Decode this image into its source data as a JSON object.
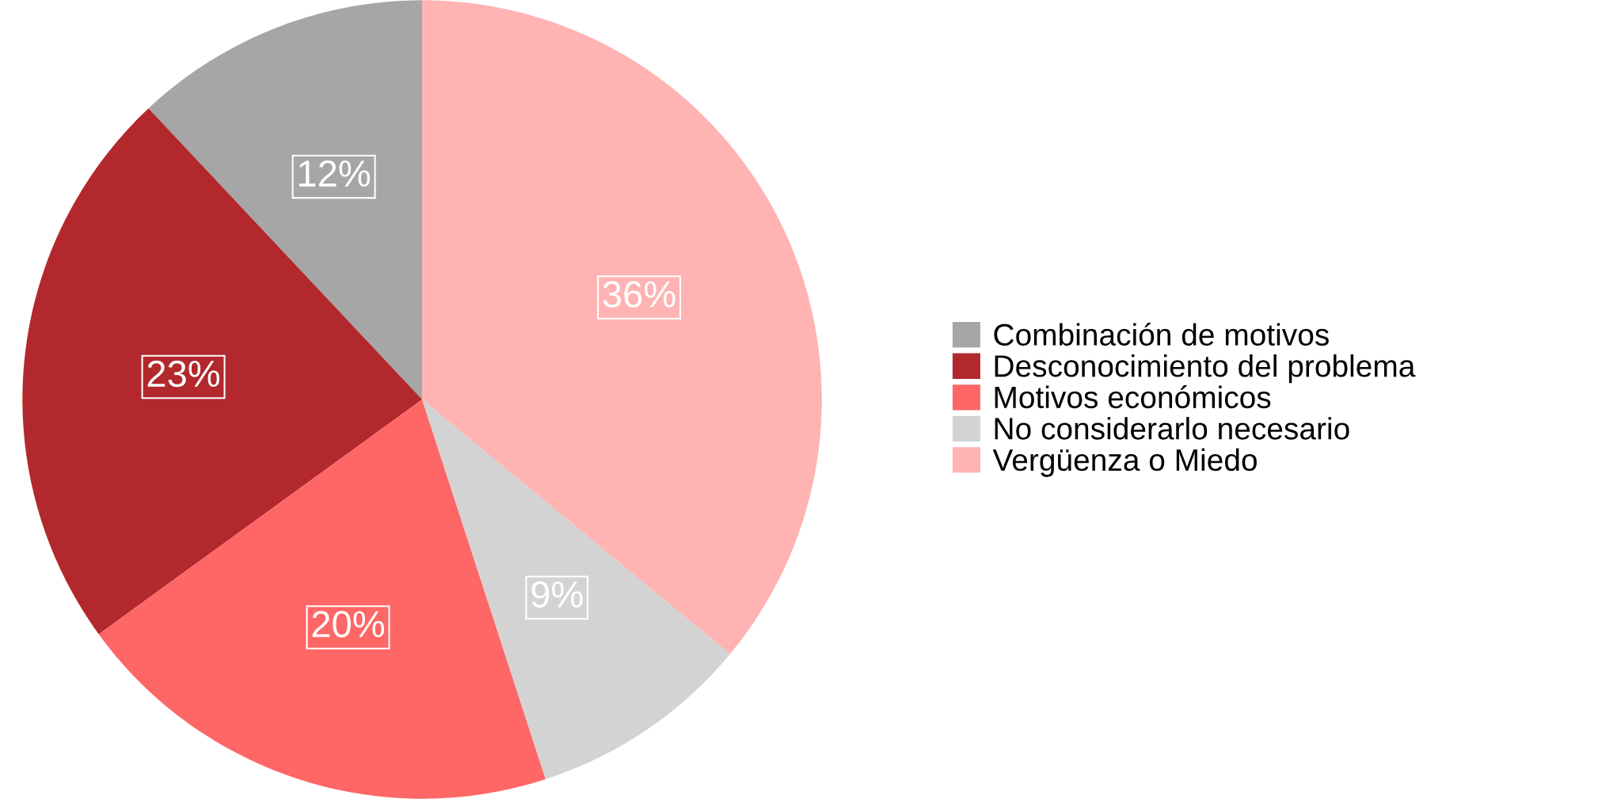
{
  "chart_data": {
    "type": "pie",
    "categories": [
      "Combinación de motivos",
      "Desconocimiento del problema",
      "Motivos económicos",
      "No considerarlo necesario",
      "Vergüenza o Miedo"
    ],
    "values": [
      12,
      23,
      20,
      9,
      36
    ],
    "colors": [
      "#a6a6a6",
      "#b2282c",
      "#ff6666",
      "#d3d3d3",
      "#ffb3b3"
    ],
    "value_labels": [
      "12%",
      "23%",
      "20%",
      "9%",
      "36%"
    ],
    "legend": "right"
  }
}
